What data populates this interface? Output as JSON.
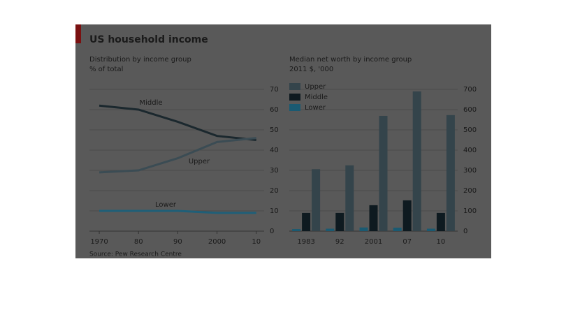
{
  "title": "US household income",
  "source": "Source: Pew Research Centre",
  "chart_data": [
    {
      "type": "line",
      "title": "Distribution by income group",
      "subtitle": "% of total",
      "x": [
        1970,
        1980,
        1990,
        2000,
        2010
      ],
      "xlim": [
        1967.5,
        2012
      ],
      "xticks": [
        1970,
        {
          "value": 1980,
          "label": "80"
        },
        {
          "value": 1990,
          "label": "90"
        },
        2000,
        {
          "value": 2010,
          "label": "10"
        }
      ],
      "ylim": [
        0,
        70
      ],
      "yticks": [
        0,
        10,
        20,
        30,
        40,
        50,
        60,
        70
      ],
      "grid": true,
      "series": [
        {
          "name": "Middle",
          "color": "#1b282e",
          "values": [
            62,
            60,
            54,
            47,
            45
          ]
        },
        {
          "name": "Upper",
          "color": "#3b4c54",
          "values": [
            29,
            30,
            36,
            44,
            46
          ]
        },
        {
          "name": "Lower",
          "color": "#1f5f78",
          "values": [
            10,
            10,
            10,
            9,
            9
          ]
        }
      ]
    },
    {
      "type": "bar",
      "title": "Median net worth by income group",
      "subtitle": "2011 $, '000",
      "categories": [
        "1983",
        "92",
        "2001",
        "07",
        "10"
      ],
      "ylim": [
        0,
        700
      ],
      "yticks": [
        0,
        100,
        200,
        300,
        400,
        500,
        600,
        700
      ],
      "grid": true,
      "legend": "top-left",
      "series": [
        {
          "name": "Upper",
          "color": "#34444b",
          "values": [
            306,
            325,
            569,
            690,
            573
          ]
        },
        {
          "name": "Middle",
          "color": "#0e1a20",
          "values": [
            90,
            90,
            128,
            152,
            90
          ]
        },
        {
          "name": "Lower",
          "color": "#1a5a72",
          "values": [
            10,
            12,
            18,
            17,
            12
          ]
        }
      ]
    }
  ]
}
